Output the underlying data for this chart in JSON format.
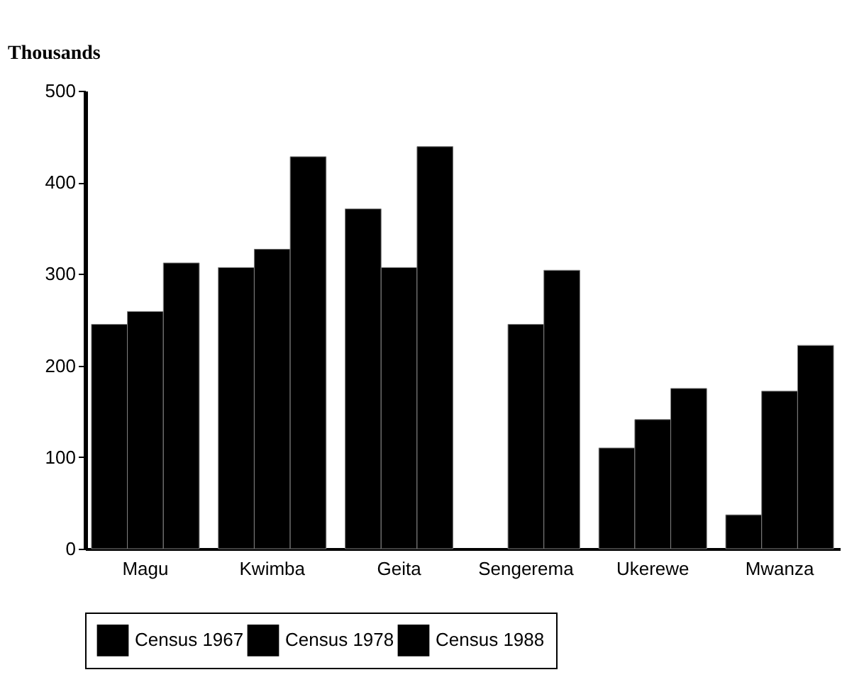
{
  "chart_data": {
    "type": "bar",
    "ylabel": "Thousands",
    "categories": [
      "Magu",
      "Kwimba",
      "Geita",
      "Sengerema",
      "Ukerewe",
      "Mwanza"
    ],
    "series": [
      {
        "name": "Census 1967",
        "color": "#000000",
        "values": [
          245,
          307,
          371,
          null,
          110,
          37
        ]
      },
      {
        "name": "Census 1978",
        "color": "#000000",
        "values": [
          259,
          327,
          307,
          245,
          141,
          172
        ]
      },
      {
        "name": "Census 1988",
        "color": "#000000",
        "values": [
          312,
          428,
          439,
          304,
          175,
          222
        ]
      }
    ],
    "ylim": [
      0,
      500
    ],
    "yticks": [
      0,
      100,
      200,
      300,
      400,
      500
    ],
    "grid": false,
    "legend": "bottom"
  }
}
